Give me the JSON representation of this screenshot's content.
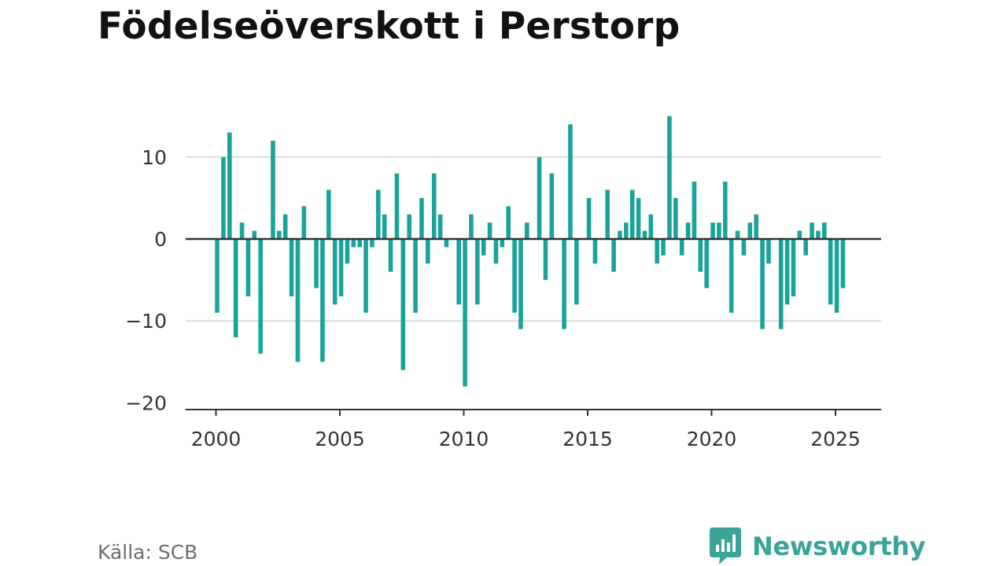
{
  "title": "Födelseöverskott i Perstorp",
  "source": "Källa: SCB",
  "brand": {
    "name": "Newsworthy",
    "color": "#3aa39a",
    "icon": "newsworthy-logo-icon"
  },
  "colors": {
    "bar": "#1aa39b",
    "grid": "#dcdcdc",
    "zero_line": "#333333",
    "axis": "#333333"
  },
  "chart_data": {
    "type": "bar",
    "x_unit": "quarter",
    "start": "2000-Q1",
    "end": "2025-Q2",
    "values": [
      -9,
      10,
      13,
      -12,
      2,
      -7,
      1,
      -14,
      0,
      12,
      1,
      3,
      -7,
      -15,
      4,
      0,
      -6,
      -15,
      6,
      -8,
      -7,
      -3,
      -1,
      -1,
      -9,
      -1,
      6,
      3,
      -4,
      8,
      -16,
      3,
      -9,
      5,
      -3,
      8,
      3,
      -1,
      0,
      -8,
      -18,
      3,
      -8,
      -2,
      2,
      -3,
      -1,
      4,
      -9,
      -11,
      2,
      0,
      10,
      -5,
      8,
      0,
      -11,
      14,
      -8,
      0,
      5,
      -3,
      0,
      6,
      -4,
      1,
      2,
      6,
      5,
      1,
      3,
      -3,
      -2,
      15,
      5,
      -2,
      2,
      7,
      -4,
      -6,
      2,
      2,
      7,
      -9,
      1,
      -2,
      2,
      3,
      -11,
      -3,
      0,
      -11,
      -8,
      -7,
      1,
      -2,
      2,
      1,
      2,
      -8,
      -9,
      -6
    ],
    "yticks": [
      10,
      0,
      -10,
      -20
    ],
    "ytick_labels": [
      "10",
      "0",
      "−10",
      "−20"
    ],
    "xticks": [
      2000,
      2005,
      2010,
      2015,
      2020,
      2025
    ],
    "xtick_labels": [
      "2000",
      "2005",
      "2010",
      "2015",
      "2020",
      "2025"
    ],
    "xlim": [
      1999.6,
      2026.75
    ],
    "ylim": [
      -20.5,
      15.5
    ],
    "grid": true,
    "title": "Födelseöverskott i Perstorp",
    "xlabel": "",
    "ylabel": ""
  }
}
